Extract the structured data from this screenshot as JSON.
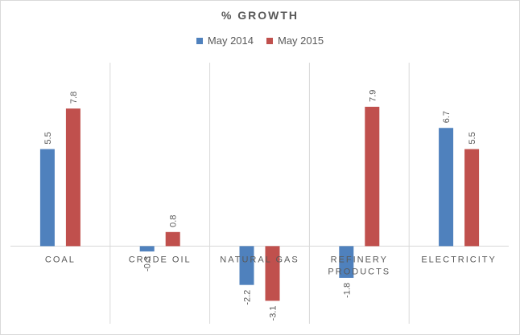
{
  "chart_data": {
    "type": "bar",
    "title": "% GROWTH",
    "categories": [
      "COAL",
      "CRUDE OIL",
      "NATURAL GAS",
      "REFINERY PRODUCTS",
      "ELECTRICITY"
    ],
    "category_lines": [
      [
        "COAL"
      ],
      [
        "CRUDE OIL"
      ],
      [
        "NATURAL GAS"
      ],
      [
        "REFINERY",
        "PRODUCTS"
      ],
      [
        "ELECTRICITY"
      ]
    ],
    "series": [
      {
        "name": "May 2014",
        "values": [
          5.5,
          -0.3,
          -2.2,
          -1.8,
          6.7
        ],
        "labels": [
          "5.5",
          "-0.3",
          "-2.2",
          "-1.8",
          "6.7"
        ],
        "color": "#4f81bd"
      },
      {
        "name": "May 2015",
        "values": [
          7.8,
          0.8,
          -3.1,
          7.9,
          5.5
        ],
        "labels": [
          "7.8",
          "0.8",
          "-3.1",
          "7.9",
          "5.5"
        ],
        "color": "#c0504d"
      }
    ],
    "xlabel": "",
    "ylabel": "",
    "ylim": [
      -4.4,
      10.4
    ],
    "legend": "top",
    "grid": "vertical category separators",
    "axis_color": "#d9d9d9"
  }
}
